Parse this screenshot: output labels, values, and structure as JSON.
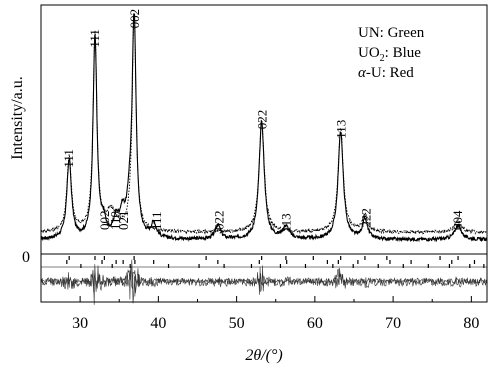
{
  "chart_data": {
    "type": "line",
    "title": "",
    "xlabel": "2θ/(°)",
    "ylabel": "Intensity/a.u.",
    "xlim": [
      25,
      82
    ],
    "xticks": [
      30,
      40,
      50,
      60,
      70,
      80
    ],
    "ylim": [
      0,
      100
    ],
    "zero_label": "0",
    "grid": false,
    "legend": {
      "placement": "top-right",
      "entries": [
        {
          "formula": "UN",
          "sub": "",
          "rest": ": Green"
        },
        {
          "formula": "UO",
          "sub": "2",
          "rest": ": Blue"
        },
        {
          "formula": "α",
          "sub": "",
          "rest": "-U: Red"
        }
      ]
    },
    "series": [
      {
        "style": "solid",
        "baseline": 6,
        "peaks": [
          {
            "x": 28.6,
            "h": 33,
            "w": 0.35
          },
          {
            "x": 31.9,
            "h": 84,
            "w": 0.3
          },
          {
            "x": 33.0,
            "h": 6,
            "w": 0.3
          },
          {
            "x": 34.6,
            "h": 7,
            "w": 0.4
          },
          {
            "x": 35.4,
            "h": 9,
            "w": 0.4
          },
          {
            "x": 36.3,
            "h": 11,
            "w": 0.4
          },
          {
            "x": 36.9,
            "h": 92,
            "w": 0.3
          },
          {
            "x": 39.4,
            "h": 6,
            "w": 0.4
          },
          {
            "x": 47.6,
            "h": 6,
            "w": 0.4
          },
          {
            "x": 53.2,
            "h": 49,
            "w": 0.4
          },
          {
            "x": 56.3,
            "h": 5,
            "w": 0.5
          },
          {
            "x": 63.3,
            "h": 45,
            "w": 0.4
          },
          {
            "x": 66.4,
            "h": 8,
            "w": 0.4
          },
          {
            "x": 78.3,
            "h": 6,
            "w": 0.5
          }
        ]
      },
      {
        "style": "dotted",
        "baseline": 9,
        "peaks": [
          {
            "x": 28.6,
            "h": 31,
            "w": 0.35
          },
          {
            "x": 31.9,
            "h": 82,
            "w": 0.3
          },
          {
            "x": 34.0,
            "h": 8,
            "w": 0.8
          },
          {
            "x": 36.9,
            "h": 90,
            "w": 0.3
          },
          {
            "x": 53.2,
            "h": 47,
            "w": 0.4
          },
          {
            "x": 63.3,
            "h": 43,
            "w": 0.4
          },
          {
            "x": 66.4,
            "h": 7,
            "w": 0.4
          },
          {
            "x": 78.3,
            "h": 5,
            "w": 0.5
          }
        ]
      }
    ],
    "peak_labels": [
      {
        "x": 28.6,
        "y": 36,
        "text": "111"
      },
      {
        "x": 31.9,
        "y": 86,
        "text": "111"
      },
      {
        "x": 33.2,
        "y": 10,
        "text": "002"
      },
      {
        "x": 34.5,
        "y": 10,
        "text": "110"
      },
      {
        "x": 35.6,
        "y": 10,
        "text": "021"
      },
      {
        "x": 37.0,
        "y": 94,
        "text": "002"
      },
      {
        "x": 39.8,
        "y": 10,
        "text": "111"
      },
      {
        "x": 47.8,
        "y": 10,
        "text": "022"
      },
      {
        "x": 53.3,
        "y": 52,
        "text": "022"
      },
      {
        "x": 56.4,
        "y": 9,
        "text": "113"
      },
      {
        "x": 63.4,
        "y": 48,
        "text": "113"
      },
      {
        "x": 66.6,
        "y": 11,
        "text": "222"
      },
      {
        "x": 78.3,
        "y": 10,
        "text": "004"
      }
    ],
    "reflection_ticks": [
      {
        "row": 0,
        "x": [
          28.6,
          31.9,
          33.1,
          36.9,
          46.1,
          53.2,
          56.3,
          59.8,
          63.3,
          66.4,
          69.2,
          76.0,
          78.3
        ]
      },
      {
        "row": 1,
        "x": [
          28.3,
          32.8,
          34.6,
          35.5,
          37.0,
          39.4,
          47.6,
          52.9,
          56.4,
          61.6,
          63.0,
          65.5,
          69.6,
          72.3,
          77.5,
          80.4
        ]
      },
      {
        "row": 2,
        "x": [
          30.1,
          34.1,
          36.4,
          41.3,
          45.2,
          48.4,
          51.9,
          55.6,
          58.8,
          62.3,
          64.9,
          68.1,
          71.3,
          74.5,
          77.2,
          79.8,
          81.6
        ]
      }
    ]
  }
}
